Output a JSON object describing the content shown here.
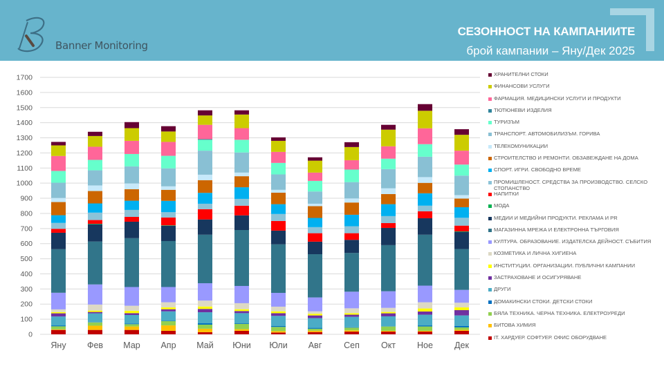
{
  "header": {
    "brand": "Banner Monitoring",
    "title": "СЕЗОННОСТ НА КАМПАНИИТЕ",
    "subtitle": "брой кампании – Яну/Дек 2025",
    "background": "#67b4cc"
  },
  "chart_data": {
    "type": "bar",
    "stacked": true,
    "title": "",
    "xlabel": "",
    "ylabel": "",
    "ylim": [
      0,
      1700
    ],
    "yticks": [
      0,
      100,
      200,
      300,
      400,
      500,
      600,
      700,
      800,
      900,
      1000,
      1100,
      1200,
      1300,
      1400,
      1500,
      1600,
      1700
    ],
    "grid": true,
    "legend_position": "right",
    "categories": [
      "Яну",
      "Фев",
      "Мар",
      "Апр",
      "Май",
      "Юни",
      "Юли",
      "Авг",
      "Сеп",
      "Окт",
      "Ное",
      "Дек"
    ],
    "series": [
      {
        "name": "IT. ХАРДУЕР. СОФТУЕР. ОФИС ОБОРУДВАНЕ",
        "color": "#c00000",
        "values": [
          29,
          29,
          29,
          23,
          14,
          23,
          12,
          15,
          18,
          18,
          18,
          23
        ]
      },
      {
        "name": "БИТОВА ХИМИЯ",
        "color": "#ffc000",
        "values": [
          4,
          28,
          23,
          36,
          23,
          11,
          9,
          9,
          8,
          5,
          5,
          7
        ]
      },
      {
        "name": "БЯЛА ТЕХНИКА. ЧЕРНА ТЕХНИКА. ЕЛЕКТРОУРЕДИ",
        "color": "#92d050",
        "values": [
          20,
          22,
          15,
          28,
          27,
          35,
          28,
          13,
          18,
          29,
          29,
          16
        ]
      },
      {
        "name": "ДОМАКИНСКИ СТОКИ. ДЕТСКИ СТОКИ",
        "color": "#0070c0",
        "values": [
          6,
          2,
          5,
          2,
          9,
          4,
          6,
          6,
          2,
          2,
          7,
          9
        ]
      },
      {
        "name": "ДРУГИ",
        "color": "#4bacc6",
        "values": [
          59,
          58,
          56,
          63,
          73,
          67,
          67,
          64,
          70,
          65,
          71,
          70
        ]
      },
      {
        "name": "ЗАСТРАХОВАНЕ И ОСИГУРЯВАНЕ",
        "color": "#7030a0",
        "values": [
          21,
          9,
          12,
          14,
          22,
          14,
          18,
          18,
          14,
          20,
          21,
          35
        ]
      },
      {
        "name": "ИНСТИТУЦИИ. ОРГАНИЗАЦИИ. ПУБЛИЧНИ КАМПАНИИ",
        "color": "#ffff00",
        "values": [
          8,
          9,
          16,
          12,
          16,
          12,
          12,
          11,
          10,
          9,
          20,
          18
        ]
      },
      {
        "name": "КОЗМЕТИКА И ЛИЧНА ХИГИЕНА",
        "color": "#ddd9c4",
        "values": [
          18,
          40,
          33,
          34,
          39,
          40,
          31,
          16,
          32,
          27,
          41,
          31
        ]
      },
      {
        "name": "КУЛТУРА. ОБРАЗОВАНИЕ. ИЗДАТЕЛСКА ДЕЙНОСТ. СЪБИТИЯ",
        "color": "#9999ff",
        "values": [
          110,
          133,
          124,
          101,
          115,
          114,
          91,
          92,
          110,
          110,
          110,
          85
        ]
      },
      {
        "name": "МАГАЗИННА МРЕЖА И ЕЛЕКТРОННА ТЪРГОВИЯ",
        "color": "#31758a",
        "values": [
          288,
          284,
          323,
          304,
          321,
          370,
          321,
          286,
          256,
          305,
          337,
          270
        ]
      },
      {
        "name": "МЕДИИ И МЕДИЙНИ ПРОДУКТИ. РЕКЛАМА И PR",
        "color": "#17375e",
        "values": [
          109,
          114,
          109,
          101,
          101,
          97,
          91,
          83,
          87,
          114,
          109,
          114
        ]
      },
      {
        "name": "МОДА",
        "color": "#00b050",
        "values": [
          0,
          3,
          0,
          3,
          0,
          0,
          0,
          0,
          0,
          0,
          0,
          3
        ]
      },
      {
        "name": "НАПИТКИ",
        "color": "#ff0000",
        "values": [
          26,
          25,
          32,
          52,
          68,
          64,
          64,
          56,
          44,
          32,
          46,
          38
        ]
      },
      {
        "name": "ПРОМИШЛЕНОСТ. СРЕДСТВА ЗА ПРОИЗВОДСТВО. СЕЛСКО СТОПАНСТВО",
        "color": "#8cc3d8",
        "values": [
          39,
          49,
          46,
          35,
          36,
          45,
          46,
          40,
          46,
          46,
          37,
          52
        ]
      },
      {
        "name": "СПОРТ. ИГРИ. СВОБОДНО ВРЕМЕ",
        "color": "#00b0f0",
        "values": [
          51,
          61,
          61,
          75,
          72,
          77,
          65,
          61,
          76,
          79,
          82,
          70
        ]
      },
      {
        "name": "СТРОИТЕЛСТВО И РЕМОНТИ. ОБЗАВЕЖДАНЕ НА ДОМА",
        "color": "#cc6600",
        "values": [
          87,
          82,
          76,
          73,
          84,
          73,
          76,
          78,
          81,
          67,
          69,
          57
        ]
      },
      {
        "name": "ТЕЛЕКОМУНИКАЦИИ",
        "color": "#c6e9fa",
        "values": [
          27,
          37,
          38,
          23,
          36,
          24,
          19,
          16,
          27,
          38,
          38,
          23
        ]
      },
      {
        "name": "ТРАНСПОРТ. АВТОМОБИЛИЗЪМ. ГОРИВА",
        "color": "#89c0d4",
        "values": [
          101,
          100,
          113,
          119,
          159,
          133,
          102,
          81,
          108,
          127,
          135,
          129
        ]
      },
      {
        "name": "ТУРИЗЪМ",
        "color": "#66ffcc",
        "values": [
          78,
          69,
          82,
          83,
          72,
          84,
          76,
          70,
          83,
          69,
          83,
          73
        ]
      },
      {
        "name": "ТЮТЮНЕВИ ИЗДЕЛИЯ",
        "color": "#31859c",
        "values": [
          0,
          0,
          0,
          0,
          4,
          0,
          0,
          0,
          0,
          0,
          0,
          0
        ]
      },
      {
        "name": "ФАРМАЦИЯ. МЕДИЦИНСКИ УСЛУГИ И ПРОДУКТИ",
        "color": "#ff6699",
        "values": [
          99,
          87,
          87,
          92,
          95,
          77,
          73,
          55,
          62,
          82,
          105,
          92
        ]
      },
      {
        "name": "ФИНАНСОВИ УСЛУГИ",
        "color": "#cccc00",
        "values": [
          70,
          71,
          84,
          69,
          62,
          90,
          73,
          79,
          87,
          110,
          116,
          105
        ]
      },
      {
        "name": "ХРАНИТЕЛНИ СТОКИ",
        "color": "#660033",
        "values": [
          23,
          28,
          40,
          35,
          34,
          28,
          23,
          22,
          32,
          32,
          44,
          37
        ]
      }
    ]
  }
}
